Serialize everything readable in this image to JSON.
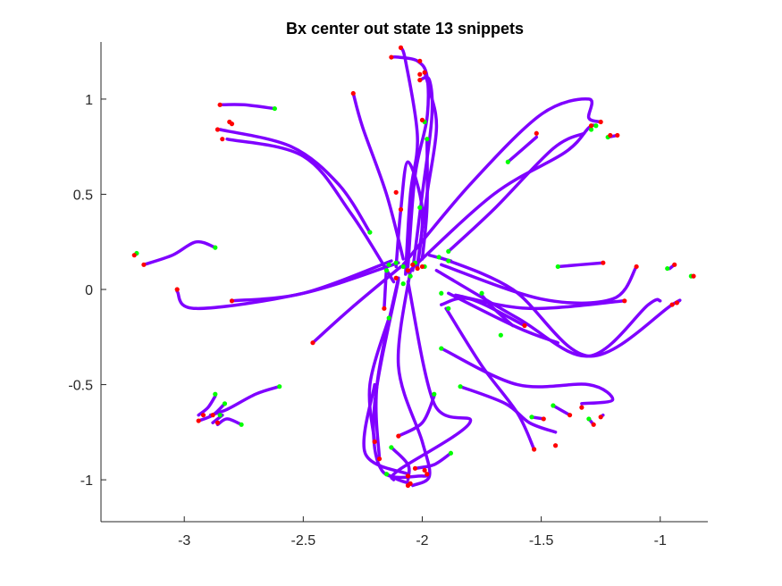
{
  "chart_data": {
    "type": "line",
    "title": "Bx  center out state 13 snippets",
    "xlabel": "",
    "ylabel": "",
    "xlim": [
      -3.35,
      -0.8
    ],
    "ylim": [
      -1.22,
      1.3
    ],
    "xticks": [
      -3,
      -2.5,
      -2,
      -1.5,
      -1
    ],
    "xtick_labels": [
      "-3",
      "-2.5",
      "-2",
      "-1.5",
      "-1"
    ],
    "yticks": [
      -1,
      -0.5,
      0,
      0.5,
      1
    ],
    "ytick_labels": [
      "-1",
      "-0.5",
      "0",
      "0.5",
      "1"
    ],
    "grid": false,
    "legend": "none",
    "colors": {
      "trajectory": "#7f00ff",
      "start_marker": "#00ff00",
      "end_marker": "#ff0000"
    },
    "series": [
      {
        "points": [
          [
            -2.62,
            0.95
          ],
          [
            -2.75,
            0.97
          ],
          [
            -2.85,
            0.97
          ]
        ]
      },
      {
        "points": [
          [
            -2.22,
            0.3
          ],
          [
            -2.35,
            0.55
          ],
          [
            -2.55,
            0.75
          ],
          [
            -2.85,
            0.84
          ]
        ]
      },
      {
        "points": [
          [
            -2.12,
            0.04
          ],
          [
            -2.3,
            0.4
          ],
          [
            -2.5,
            0.7
          ],
          [
            -2.82,
            0.79
          ]
        ]
      },
      {
        "points": [
          [
            -2.08,
            0.16
          ],
          [
            -2.15,
            0.5
          ],
          [
            -2.25,
            0.85
          ],
          [
            -2.29,
            1.03
          ]
        ]
      },
      {
        "points": [
          [
            -2.07,
            0.08
          ],
          [
            -2.05,
            0.5
          ],
          [
            -2.02,
            0.8
          ],
          [
            -2.07,
            1.2
          ],
          [
            -2.09,
            1.27
          ]
        ]
      },
      {
        "points": [
          [
            -2.06,
            0.12
          ],
          [
            -2.03,
            0.6
          ],
          [
            -1.98,
            0.9
          ],
          [
            -1.98,
            1.12
          ],
          [
            -2.02,
            1.2
          ],
          [
            -2.1,
            1.22
          ],
          [
            -2.13,
            1.22
          ]
        ]
      },
      {
        "points": [
          [
            -2.04,
            0.1
          ],
          [
            -2.0,
            0.5
          ],
          [
            -1.96,
            0.9
          ],
          [
            -1.97,
            1.1
          ],
          [
            -2.01,
            1.1
          ]
        ]
      },
      {
        "points": [
          [
            -2.02,
            0.13
          ],
          [
            -1.98,
            0.5
          ],
          [
            -1.94,
            0.85
          ],
          [
            -1.97,
            1.05
          ],
          [
            -1.99,
            1.14
          ]
        ]
      },
      {
        "points": [
          [
            -2.0,
            0.16
          ],
          [
            -1.98,
            0.43
          ],
          [
            -1.98,
            0.79
          ]
        ]
      },
      {
        "points": [
          [
            -2.02,
            0.11
          ],
          [
            -2.0,
            0.42
          ],
          [
            -2.06,
            0.67
          ],
          [
            -2.09,
            0.42
          ],
          [
            -2.11,
            0.12
          ]
        ]
      },
      {
        "points": [
          [
            -1.89,
            0.2
          ],
          [
            -1.7,
            0.42
          ],
          [
            -1.45,
            0.74
          ],
          [
            -1.32,
            0.82
          ]
        ]
      },
      {
        "points": [
          [
            -1.64,
            0.67
          ],
          [
            -1.52,
            0.8
          ]
        ]
      },
      {
        "points": [
          [
            -2.08,
            0.13
          ],
          [
            -1.8,
            0.55
          ],
          [
            -1.5,
            0.92
          ],
          [
            -1.3,
            1.0
          ],
          [
            -1.3,
            0.9
          ],
          [
            -1.25,
            0.88
          ]
        ]
      },
      {
        "points": [
          [
            -2.06,
            0.09
          ],
          [
            -1.7,
            0.5
          ],
          [
            -1.4,
            0.72
          ],
          [
            -1.3,
            0.85
          ],
          [
            -1.27,
            0.86
          ]
        ]
      },
      {
        "points": [
          [
            -1.22,
            0.8
          ],
          [
            -1.18,
            0.81
          ]
        ]
      },
      {
        "points": [
          [
            -3.2,
            0.19
          ],
          [
            -3.21,
            0.18
          ]
        ]
      },
      {
        "points": [
          [
            -2.87,
            0.22
          ],
          [
            -2.95,
            0.25
          ],
          [
            -3.05,
            0.18
          ],
          [
            -3.17,
            0.13
          ]
        ]
      },
      {
        "points": [
          [
            -2.13,
            0.15
          ],
          [
            -2.5,
            -0.02
          ],
          [
            -2.8,
            -0.06
          ]
        ]
      },
      {
        "points": [
          [
            -2.1,
            0.14
          ],
          [
            -2.5,
            -0.02
          ],
          [
            -2.95,
            -0.1
          ],
          [
            -3.03,
            -0.01
          ]
        ]
      },
      {
        "points": [
          [
            -2.09,
            0.12
          ],
          [
            -2.3,
            -0.1
          ],
          [
            -2.46,
            -0.28
          ]
        ]
      },
      {
        "points": [
          [
            -2.15,
            0.12
          ],
          [
            -2.16,
            -0.1
          ]
        ]
      },
      {
        "points": [
          [
            -2.14,
            -0.15
          ],
          [
            -2.22,
            -0.5
          ],
          [
            -2.2,
            -0.8
          ]
        ]
      },
      {
        "points": [
          [
            -2.1,
            0.06
          ],
          [
            -2.19,
            -0.5
          ],
          [
            -2.18,
            -0.89
          ]
        ]
      },
      {
        "points": [
          [
            -2.1,
            0.05
          ],
          [
            -2.2,
            -0.6
          ],
          [
            -2.17,
            -0.95
          ],
          [
            -2.0,
            -0.98
          ],
          [
            -1.98,
            -0.97
          ]
        ]
      },
      {
        "points": [
          [
            -2.05,
            0.1
          ],
          [
            -2.1,
            -0.4
          ],
          [
            -2.0,
            -0.8
          ],
          [
            -1.97,
            -0.98
          ],
          [
            -2.04,
            -1.03
          ]
        ]
      },
      {
        "points": [
          [
            -1.95,
            -0.56
          ],
          [
            -2.0,
            -0.7
          ],
          [
            -2.1,
            -0.77
          ]
        ]
      },
      {
        "points": [
          [
            -1.88,
            -0.86
          ],
          [
            -1.95,
            -0.92
          ],
          [
            -2.03,
            -0.94
          ]
        ]
      },
      {
        "points": [
          [
            -2.13,
            -0.83
          ],
          [
            -2.06,
            -0.92
          ],
          [
            -2.06,
            -1.0
          ]
        ]
      },
      {
        "points": [
          [
            -2.15,
            -0.97
          ],
          [
            -2.1,
            -1.0
          ],
          [
            -2.05,
            -1.02
          ]
        ]
      },
      {
        "points": [
          [
            -2.2,
            -0.5
          ],
          [
            -2.24,
            -0.86
          ],
          [
            -2.06,
            -0.97
          ]
        ]
      },
      {
        "points": [
          [
            -2.06,
            0.04
          ],
          [
            -1.95,
            -0.6
          ],
          [
            -1.8,
            -0.7
          ],
          [
            -2.1,
            -0.95
          ],
          [
            -2.12,
            -1.0
          ]
        ]
      },
      {
        "points": [
          [
            -1.93,
            0.17
          ],
          [
            -1.62,
            0.0
          ],
          [
            -1.3,
            -0.35
          ],
          [
            -0.95,
            -0.08
          ],
          [
            -0.93,
            -0.07
          ]
        ]
      },
      {
        "points": [
          [
            -1.92,
            0.13
          ],
          [
            -1.5,
            -0.05
          ],
          [
            -1.2,
            -0.05
          ],
          [
            -1.1,
            0.12
          ]
        ]
      },
      {
        "points": [
          [
            -1.94,
            0.1
          ],
          [
            -1.6,
            -0.15
          ],
          [
            -1.3,
            -0.35
          ],
          [
            -1.05,
            -0.08
          ],
          [
            -1.0,
            -0.06
          ]
        ]
      },
      {
        "points": [
          [
            -1.92,
            -0.08
          ],
          [
            -1.8,
            -0.05
          ],
          [
            -1.57,
            -0.19
          ]
        ]
      },
      {
        "points": [
          [
            -1.89,
            -0.02
          ],
          [
            -1.6,
            -0.2
          ],
          [
            -1.43,
            -0.28
          ]
        ]
      },
      {
        "points": [
          [
            -1.86,
            -0.03
          ],
          [
            -1.55,
            -0.1
          ],
          [
            -1.15,
            -0.06
          ]
        ]
      },
      {
        "points": [
          [
            -1.43,
            0.12
          ],
          [
            -1.24,
            0.14
          ]
        ]
      },
      {
        "points": [
          [
            -1.75,
            -0.03
          ],
          [
            -1.7,
            -0.1
          ],
          [
            -1.62,
            -0.19
          ]
        ]
      },
      {
        "points": [
          [
            -1.88,
            0.15
          ],
          [
            -1.97,
            0.18
          ]
        ]
      },
      {
        "points": [
          [
            -0.96,
            0.11
          ],
          [
            -0.94,
            0.13
          ]
        ]
      },
      {
        "points": [
          [
            -0.87,
            0.07
          ],
          [
            -0.86,
            0.07
          ]
        ]
      },
      {
        "points": [
          [
            -1.92,
            -0.31
          ],
          [
            -1.6,
            -0.5
          ],
          [
            -1.3,
            -0.5
          ],
          [
            -1.2,
            -0.58
          ],
          [
            -1.33,
            -0.6
          ]
        ]
      },
      {
        "points": [
          [
            -1.84,
            -0.51
          ],
          [
            -1.65,
            -0.6
          ],
          [
            -1.55,
            -0.7
          ],
          [
            -1.44,
            -0.75
          ]
        ]
      },
      {
        "points": [
          [
            -1.9,
            -0.1
          ],
          [
            -1.75,
            -0.4
          ],
          [
            -1.6,
            -0.65
          ],
          [
            -1.53,
            -0.84
          ]
        ]
      },
      {
        "points": [
          [
            -1.54,
            -0.67
          ],
          [
            -1.49,
            -0.68
          ]
        ]
      },
      {
        "points": [
          [
            -1.45,
            -0.61
          ],
          [
            -1.38,
            -0.66
          ]
        ]
      },
      {
        "points": [
          [
            -1.3,
            -0.68
          ],
          [
            -1.28,
            -0.71
          ]
        ]
      },
      {
        "points": [
          [
            -1.24,
            -0.66
          ],
          [
            -1.25,
            -0.67
          ]
        ]
      },
      {
        "points": [
          [
            -2.87,
            -0.56
          ],
          [
            -2.9,
            -0.62
          ],
          [
            -2.94,
            -0.66
          ]
        ]
      },
      {
        "points": [
          [
            -2.83,
            -0.6
          ],
          [
            -2.88,
            -0.66
          ],
          [
            -2.94,
            -0.69
          ]
        ]
      },
      {
        "points": [
          [
            -2.6,
            -0.51
          ],
          [
            -2.7,
            -0.55
          ],
          [
            -2.82,
            -0.63
          ],
          [
            -2.89,
            -0.66
          ]
        ]
      },
      {
        "points": [
          [
            -2.84,
            -0.66
          ],
          [
            -2.88,
            -0.7
          ]
        ]
      },
      {
        "points": [
          [
            -2.76,
            -0.71
          ],
          [
            -2.82,
            -0.68
          ],
          [
            -2.86,
            -0.71
          ]
        ]
      }
    ],
    "start_points": [
      [
        -2.62,
        0.95
      ],
      [
        -2.22,
        0.3
      ],
      [
        -1.98,
        0.79
      ],
      [
        -2.01,
        0.43
      ],
      [
        -1.99,
        0.88
      ],
      [
        -1.89,
        0.2
      ],
      [
        -1.64,
        0.67
      ],
      [
        -1.29,
        0.84
      ],
      [
        -1.27,
        0.86
      ],
      [
        -1.22,
        0.8
      ],
      [
        -3.2,
        0.19
      ],
      [
        -2.87,
        0.22
      ],
      [
        -2.14,
        0.13
      ],
      [
        -2.11,
        0.14
      ],
      [
        -2.08,
        0.12
      ],
      [
        -2.03,
        0.14
      ],
      [
        -1.99,
        0.12
      ],
      [
        -1.93,
        0.17
      ],
      [
        -1.89,
        0.15
      ],
      [
        -2.15,
        0.1
      ],
      [
        -1.92,
        -0.02
      ],
      [
        -1.75,
        -0.02
      ],
      [
        -1.89,
        -0.1
      ],
      [
        -2.14,
        -0.15
      ],
      [
        -1.43,
        0.12
      ],
      [
        -0.97,
        0.11
      ],
      [
        -0.87,
        0.07
      ],
      [
        -1.92,
        -0.31
      ],
      [
        -1.95,
        -0.55
      ],
      [
        -1.84,
        -0.51
      ],
      [
        -1.88,
        -0.86
      ],
      [
        -2.13,
        -0.83
      ],
      [
        -2.15,
        -0.97
      ],
      [
        -1.67,
        -0.24
      ],
      [
        -1.54,
        -0.67
      ],
      [
        -1.45,
        -0.61
      ],
      [
        -1.3,
        -0.68
      ],
      [
        -2.87,
        -0.55
      ],
      [
        -2.83,
        -0.6
      ],
      [
        -2.6,
        -0.51
      ],
      [
        -2.85,
        -0.66
      ],
      [
        -2.76,
        -0.71
      ],
      [
        -2.05,
        0.07
      ],
      [
        -2.08,
        0.03
      ]
    ],
    "end_points": [
      [
        -2.85,
        0.97
      ],
      [
        -2.81,
        0.88
      ],
      [
        -2.8,
        0.87
      ],
      [
        -2.86,
        0.84
      ],
      [
        -2.84,
        0.79
      ],
      [
        -2.29,
        1.03
      ],
      [
        -2.09,
        1.27
      ],
      [
        -2.13,
        1.22
      ],
      [
        -2.01,
        1.2
      ],
      [
        -2.01,
        1.13
      ],
      [
        -1.99,
        1.14
      ],
      [
        -2.01,
        1.1
      ],
      [
        -2.0,
        0.89
      ],
      [
        -2.11,
        0.51
      ],
      [
        -2.09,
        0.42
      ],
      [
        -1.52,
        0.82
      ],
      [
        -1.25,
        0.88
      ],
      [
        -1.29,
        0.86
      ],
      [
        -1.21,
        0.81
      ],
      [
        -1.18,
        0.81
      ],
      [
        -3.21,
        0.18
      ],
      [
        -3.17,
        0.13
      ],
      [
        -3.03,
        -0.0
      ],
      [
        -2.8,
        -0.06
      ],
      [
        -2.46,
        -0.28
      ],
      [
        -2.16,
        -0.1
      ],
      [
        -1.57,
        -0.19
      ],
      [
        -1.24,
        0.14
      ],
      [
        -1.1,
        0.12
      ],
      [
        -1.15,
        -0.06
      ],
      [
        -0.94,
        0.13
      ],
      [
        -0.93,
        -0.07
      ],
      [
        -0.95,
        -0.08
      ],
      [
        -0.86,
        0.07
      ],
      [
        -2.2,
        -0.8
      ],
      [
        -2.18,
        -0.89
      ],
      [
        -2.1,
        -0.77
      ],
      [
        -2.03,
        -0.94
      ],
      [
        -1.98,
        -0.97
      ],
      [
        -2.06,
        -0.98
      ],
      [
        -2.05,
        -1.02
      ],
      [
        -2.06,
        -1.03
      ],
      [
        -1.99,
        -0.95
      ],
      [
        -1.53,
        -0.84
      ],
      [
        -1.44,
        -0.82
      ],
      [
        -1.33,
        -0.62
      ],
      [
        -1.49,
        -0.68
      ],
      [
        -1.38,
        -0.66
      ],
      [
        -1.28,
        -0.71
      ],
      [
        -1.25,
        -0.67
      ],
      [
        -2.94,
        -0.69
      ],
      [
        -2.86,
        -0.7
      ],
      [
        -2.88,
        -0.66
      ],
      [
        -2.92,
        -0.66
      ],
      [
        -2.04,
        0.13
      ],
      [
        -2.06,
        0.1
      ],
      [
        -2.11,
        0.06
      ],
      [
        -2.02,
        0.11
      ],
      [
        -2.0,
        0.12
      ]
    ]
  }
}
